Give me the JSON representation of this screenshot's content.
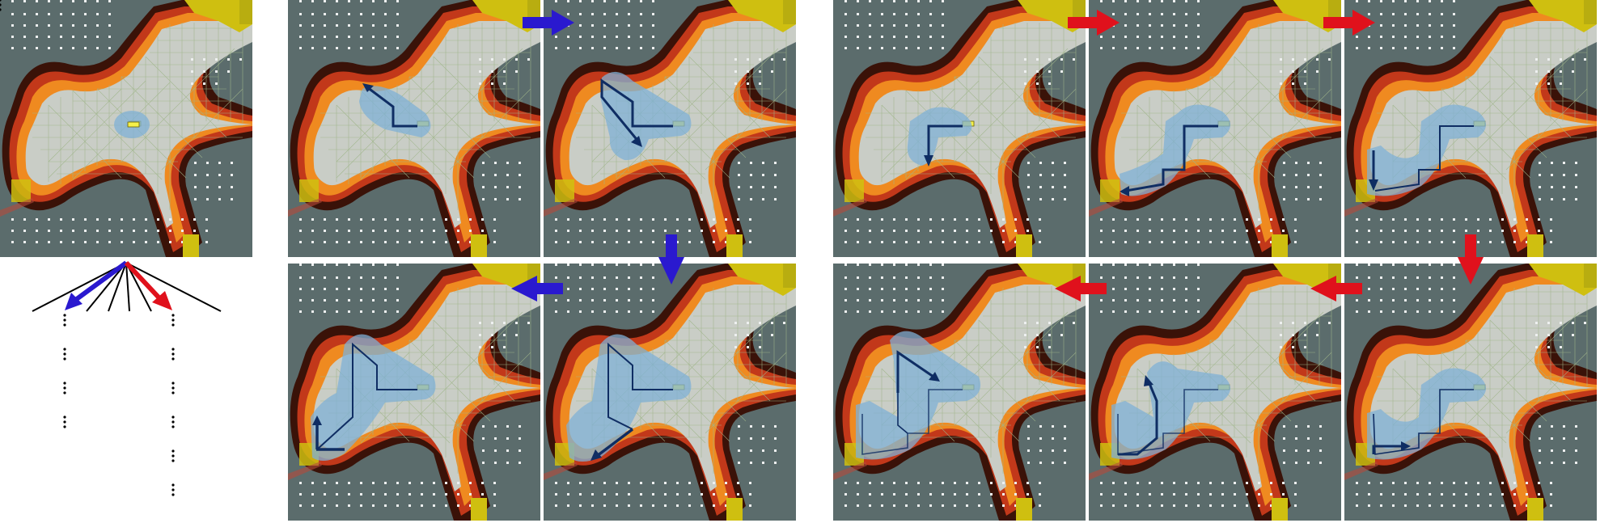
{
  "figure": {
    "description_free": true,
    "colors": {
      "background": "#ffffff",
      "floor_dark": "#5b6c6c",
      "explored_floor": "#c9cdc6",
      "grid_line": "#9fb58a",
      "waypoint": "#eef0f0",
      "hazard_outer": "#3a1208",
      "hazard_mid": "#c2381a",
      "hazard_inner": "#ef8a20",
      "goal_yellow": "#cfbf10",
      "agent": "#f5f04a",
      "path_region": "#7fb0d6",
      "path_line": "#0f2d63",
      "blue_arrow": "#2a19cf",
      "red_arrow": "#e0111c",
      "tree_line": "#000000"
    },
    "panels": {
      "root": {
        "name": "root-state-map"
      },
      "blue_sequence": [
        {
          "name": "blue-step-1",
          "trajectory": "short-up-left"
        },
        {
          "name": "blue-step-2",
          "trajectory": "down-right"
        },
        {
          "name": "blue-step-3",
          "trajectory": "down-left-long"
        },
        {
          "name": "blue-step-4",
          "trajectory": "up-to-left"
        }
      ],
      "red_sequence": [
        {
          "name": "red-step-1",
          "trajectory": "short-down"
        },
        {
          "name": "red-step-2",
          "trajectory": "down-left"
        },
        {
          "name": "red-step-3",
          "trajectory": "left-down"
        },
        {
          "name": "red-step-4",
          "trajectory": "bottom-right"
        },
        {
          "name": "red-step-5",
          "trajectory": "up-right"
        },
        {
          "name": "red-step-6",
          "trajectory": "up-right-top"
        }
      ]
    },
    "tree": {
      "branch_count": 8,
      "highlighted_branches": [
        "blue",
        "red"
      ],
      "ellipsis_glyph": "⋮",
      "blue_column_ellipses": 4,
      "red_column_ellipses": 6
    }
  }
}
